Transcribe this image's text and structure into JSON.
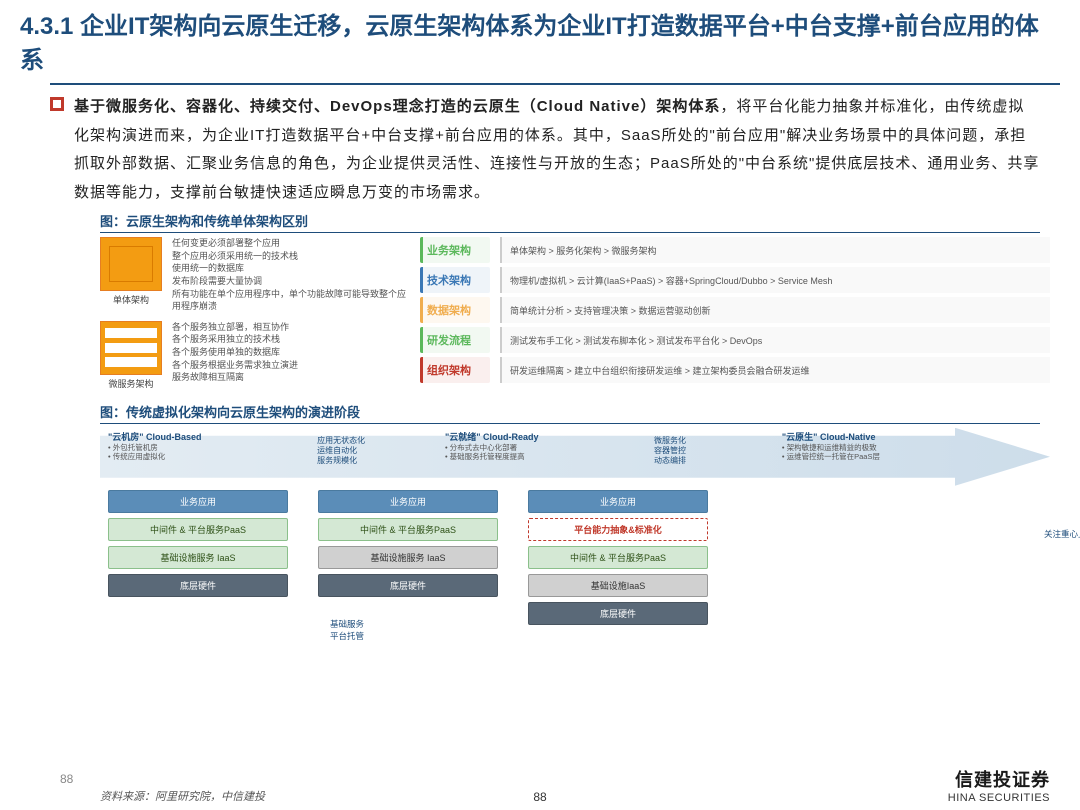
{
  "header": {
    "section_number": "4.3.1",
    "title": "企业IT架构向云原生迁移，云原生架构体系为企业IT打造数据平台+中台支撑+前台应用的体系"
  },
  "body": {
    "text_bold": "基于微服务化、容器化、持续交付、DevOps理念打造的云原生（Cloud Native）架构体系",
    "text_rest": "，将平台化能力抽象并标准化，由传统虚拟化架构演进而来，为企业IT打造数据平台+中台支撑+前台应用的体系。其中，SaaS所处的\"前台应用\"解决业务场景中的具体问题，承担抓取外部数据、汇聚业务信息的角色，为企业提供灵活性、连接性与开放的生态；PaaS所处的\"中台系统\"提供底层技术、通用业务、共享数据等能力，支撑前台敏捷快速适应瞬息万变的市场需求。"
  },
  "fig1": {
    "caption": "图：云原生架构和传统单体架构区别",
    "mono": {
      "label": "单体架构",
      "desc": "任何变更必须部署整个应用\n整个应用必须采用统一的技术栈\n使用统一的数据库\n发布阶段需要大量协调\n所有功能在单个应用程序中，单个功能故障可能导致整个应用程序崩溃"
    },
    "micro": {
      "label": "微服务架构",
      "desc": "各个服务独立部署，相互协作\n各个服务采用独立的技术栈\n各个服务使用单独的数据库\n各个服务根据业务需求独立演进\n服务故障相互隔离"
    },
    "matrix": [
      {
        "label": "业务架构",
        "color": "#5cb85c",
        "content": "单体架构 > 服务化架构 > 微服务架构"
      },
      {
        "label": "技术架构",
        "color": "#3b78b5",
        "content": "物理机/虚拟机 > 云计算(IaaS+PaaS) > 容器+SpringCloud/Dubbo > Service Mesh"
      },
      {
        "label": "数据架构",
        "color": "#f0ad4e",
        "content": "简单统计分析 > 支持管理决策 > 数据运营驱动创新"
      },
      {
        "label": "研发流程",
        "color": "#5cb85c",
        "content": "测试发布手工化 > 测试发布脚本化 > 测试发布平台化 > DevOps"
      },
      {
        "label": "组织架构",
        "color": "#c0392b",
        "content": "研发运维隔离 > 建立中台组织衔接研发运维 > 建立架构委员会融合研发运维"
      }
    ]
  },
  "fig2": {
    "caption": "图：传统虚拟化架构向云原生架构的演进阶段",
    "stages": [
      {
        "title": "\"云机房\" Cloud-Based",
        "sub": "• 外包托管机房\n• 传统应用虚拟化"
      },
      {
        "title2": "应用无状态化\n运维自动化\n服务规模化"
      },
      {
        "title": "\"云就绪\" Cloud-Ready",
        "sub": "• 分布式去中心化部署\n• 基础服务托管程度提高"
      },
      {
        "title2": "微服务化\n容器管控\n动态编排"
      },
      {
        "title": "\"云原生\" Cloud-Native",
        "sub": "• 架构敏捷和运维精益的极致\n• 运维管控统一托管在PaaS层"
      }
    ],
    "stacks": [
      [
        "业务应用",
        "中间件 & 平台服务PaaS",
        "基础设施服务 IaaS",
        "底层硬件"
      ],
      [
        "业务应用",
        "中间件 & 平台服务PaaS",
        "基础设施服务 IaaS",
        "底层硬件"
      ],
      [
        "业务应用",
        "平台能力抽象&标准化",
        "中间件 & 平台服务PaaS",
        "基础设施IaaS",
        "底层硬件"
      ]
    ],
    "annotations": {
      "right": "关注重心上移",
      "bottom": "基础服务\n平台托管"
    }
  },
  "footer": {
    "page": "88",
    "source": "资料来源：阿里研究院，中信建投",
    "logo_cn": "信建投证券",
    "logo_en": "HINA SECURITIES"
  },
  "colors": {
    "primary": "#1e4d7b",
    "accent": "#c0392b",
    "orange": "#f39c12"
  }
}
